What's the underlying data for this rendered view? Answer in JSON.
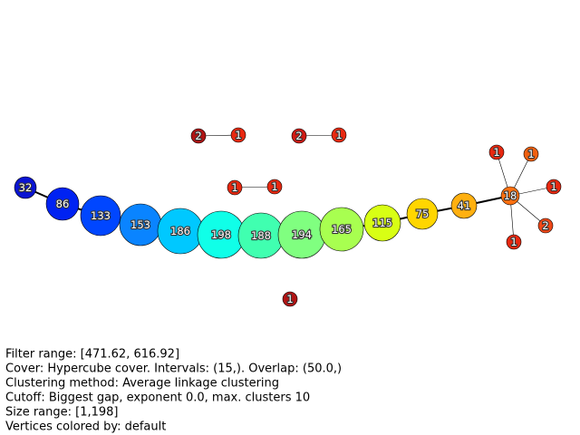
{
  "nodes": [
    {
      "label": "32",
      "color": "#0a14d2"
    },
    {
      "label": "86",
      "color": "#0022f2"
    },
    {
      "label": "133",
      "color": "#0046ff"
    },
    {
      "label": "153",
      "color": "#0a84ff"
    },
    {
      "label": "186",
      "color": "#00c8ff"
    },
    {
      "label": "198",
      "color": "#10ffe8"
    },
    {
      "label": "188",
      "color": "#40ffb0"
    },
    {
      "label": "194",
      "color": "#80ff80"
    },
    {
      "label": "165",
      "color": "#a8ff50"
    },
    {
      "label": "115",
      "color": "#d8ff14"
    },
    {
      "label": "75",
      "color": "#ffd600"
    },
    {
      "label": "41",
      "color": "#ffb010"
    },
    {
      "label": "18",
      "color": "#ff7010"
    },
    {
      "label": "1",
      "color": "#e82810"
    },
    {
      "label": "1",
      "color": "#f06010"
    },
    {
      "label": "1",
      "color": "#e82810"
    },
    {
      "label": "2",
      "color": "#f04818"
    },
    {
      "label": "1",
      "color": "#e82810"
    },
    {
      "label": "2",
      "color": "#b01414"
    },
    {
      "label": "1",
      "color": "#e82810"
    },
    {
      "label": "2",
      "color": "#d01a14"
    },
    {
      "label": "1",
      "color": "#e82810"
    },
    {
      "label": "1",
      "color": "#e82810"
    },
    {
      "label": "1",
      "color": "#e82810"
    },
    {
      "label": "1",
      "color": "#b01414"
    }
  ],
  "info": {
    "lines": [
      "Filter range: [471.62, 616.92]",
      "Cover: Hypercube cover. Intervals: (15,). Overlap: (50.0,)",
      "Clustering method: Average linkage clustering",
      "Cutoff: Biggest gap, exponent 0.0, max. clusters 10",
      "Size range: [1,198]",
      "Vertices colored by: default"
    ]
  }
}
